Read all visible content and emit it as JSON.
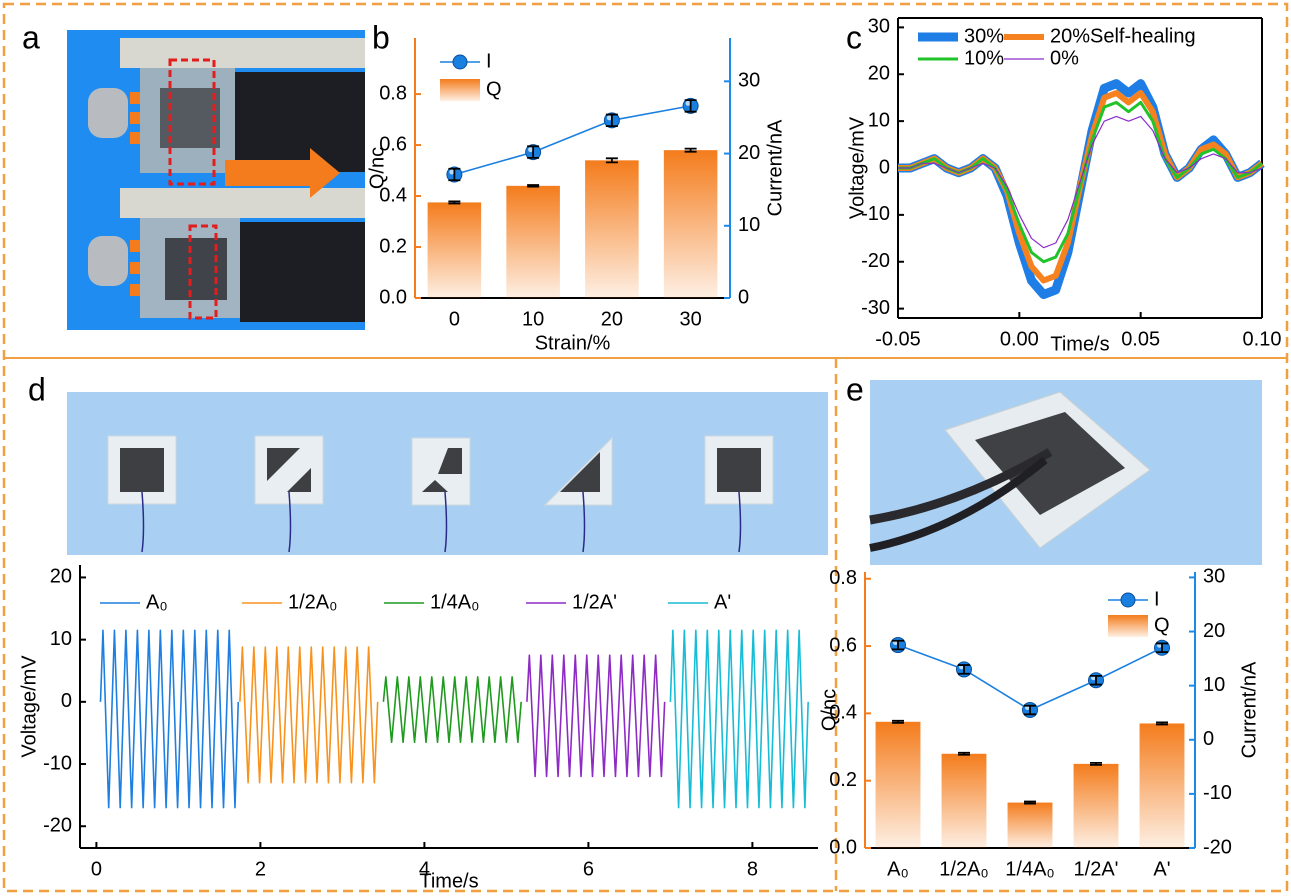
{
  "panel_labels": [
    "a",
    "b",
    "c",
    "d",
    "e"
  ],
  "chart_data": [
    {
      "type": "bar",
      "xlabel": "Strain/%",
      "ylabel": "Q/nc",
      "y2label": "Current/nA",
      "categories": [
        "0",
        "10",
        "20",
        "30"
      ],
      "series": [
        {
          "name": "I",
          "type": "line",
          "axis": "y2",
          "marker": true,
          "color": "#1a80e0",
          "values": [
            17.1,
            20.2,
            24.6,
            26.6
          ],
          "errors": [
            0.8,
            0.8,
            0.8,
            0.8
          ]
        },
        {
          "name": "Q",
          "type": "bar",
          "color": "#f47c1c",
          "values": [
            0.375,
            0.44,
            0.54,
            0.58
          ],
          "errors": [
            0.004,
            0.003,
            0.008,
            0.006
          ]
        }
      ],
      "ylim": [
        0,
        1.02
      ],
      "yticks": [
        {
          "value": 0,
          "label": "0.0"
        },
        0.2,
        0.4,
        0.6,
        0.8
      ],
      "y2lim": [
        0,
        36
      ],
      "y2ticks": [
        0,
        10,
        20,
        30
      ],
      "ycolor": "#f47c1c",
      "y2color": "#1a8ae6",
      "legend": "upper left",
      "legend_columns": 1
    },
    {
      "type": "line",
      "xlabel": "Time/s",
      "ylabel": "Voltage/mV",
      "annotation": "Self-healing",
      "x": [
        -0.05,
        -0.045,
        -0.04,
        -0.035,
        -0.03,
        -0.025,
        -0.02,
        -0.015,
        -0.01,
        -0.005,
        0,
        0.005,
        0.01,
        0.015,
        0.02,
        0.025,
        0.03,
        0.035,
        0.04,
        0.045,
        0.05,
        0.055,
        0.06,
        0.065,
        0.07,
        0.075,
        0.08,
        0.085,
        0.09,
        0.095,
        0.1
      ],
      "series": [
        {
          "name": "30%",
          "color": "#1f7de6",
          "width": 9,
          "values": [
            0,
            0,
            1,
            2,
            0,
            -1,
            0,
            2,
            0,
            -6,
            -16,
            -24,
            -27,
            -26,
            -18,
            -5,
            8,
            17,
            18,
            16,
            18,
            13,
            3,
            -2,
            0,
            4,
            6,
            3,
            -2,
            -1,
            1
          ]
        },
        {
          "name": "20%",
          "color": "#f5821e",
          "width": 6,
          "values": [
            0,
            0,
            1,
            2,
            0,
            -1,
            0,
            2,
            0,
            -5,
            -14,
            -21,
            -24,
            -23,
            -16,
            -4,
            7,
            15,
            16,
            14,
            16,
            12,
            3,
            -2,
            0,
            4,
            5,
            3,
            -2,
            -1,
            1
          ]
        },
        {
          "name": "10%",
          "color": "#22c32a",
          "width": 3,
          "values": [
            0,
            0,
            1,
            2,
            0,
            -1,
            0,
            2,
            0,
            -5,
            -12,
            -18,
            -20,
            -19,
            -14,
            -4,
            6,
            13,
            14,
            12,
            14,
            10,
            2,
            -2,
            0,
            3,
            4,
            2,
            -2,
            -1,
            1
          ]
        },
        {
          "name": "0%",
          "color": "#8b2cc8",
          "width": 1.2,
          "values": [
            0,
            0,
            1,
            1,
            0,
            -1,
            0,
            1,
            0,
            -4,
            -10,
            -15,
            -17,
            -16,
            -11,
            -3,
            5,
            10,
            11,
            10,
            11,
            8,
            2,
            -1,
            0,
            2,
            3,
            2,
            -1,
            -1,
            0
          ]
        }
      ],
      "xlim": [
        -0.05,
        0.1
      ],
      "xticks": [
        -0.05,
        {
          "value": 0,
          "label": "0.00"
        },
        0.05,
        {
          "value": 0.1,
          "label": "0.10"
        }
      ],
      "ylim": [
        -32,
        32
      ],
      "yticks": [
        -30,
        -20,
        -10,
        0,
        10,
        20,
        30
      ],
      "legend": "upper left",
      "legend_columns": 2
    },
    {
      "type": "line",
      "xlabel": "Time/s",
      "ylabel": "Voltage/mV",
      "series": [
        {
          "name": "A₀",
          "color": "#1f7fe0",
          "x": [
            0.05,
            0.08,
            0.15,
            0.22,
            0.29,
            0.36,
            0.43,
            0.5,
            0.57,
            0.64,
            0.71,
            0.78,
            0.85,
            0.92,
            0.99,
            1.06,
            1.13,
            1.2,
            1.27,
            1.34,
            1.41,
            1.48,
            1.55,
            1.62,
            1.69,
            1.73
          ],
          "values": [
            0,
            11.5,
            -17,
            11.5,
            -17,
            11.5,
            -17,
            11.5,
            -17,
            11.5,
            -17,
            11.5,
            -17,
            11.5,
            -17,
            11.5,
            -17,
            11.5,
            -17,
            11.5,
            -17,
            11.5,
            -17,
            11.5,
            -17,
            0
          ]
        },
        {
          "name": "1/2A₀",
          "color": "#f7931e",
          "x": [
            1.75,
            1.78,
            1.85,
            1.92,
            1.99,
            2.06,
            2.13,
            2.2,
            2.27,
            2.34,
            2.41,
            2.48,
            2.55,
            2.62,
            2.69,
            2.76,
            2.83,
            2.9,
            2.97,
            3.04,
            3.11,
            3.18,
            3.25,
            3.32,
            3.39,
            3.43
          ],
          "values": [
            0,
            8.8,
            -13,
            8.8,
            -13,
            8.8,
            -13,
            8.8,
            -13,
            8.8,
            -13,
            8.8,
            -13,
            8.8,
            -13,
            8.8,
            -13,
            8.8,
            -13,
            8.8,
            -13,
            8.8,
            -13,
            8.8,
            -13,
            0
          ]
        },
        {
          "name": "1/4A₀",
          "color": "#1f9a1f",
          "x": [
            3.5,
            3.53,
            3.6,
            3.67,
            3.74,
            3.81,
            3.88,
            3.95,
            4.02,
            4.09,
            4.16,
            4.23,
            4.3,
            4.37,
            4.44,
            4.51,
            4.58,
            4.65,
            4.72,
            4.79,
            4.86,
            4.93,
            5.0,
            5.07,
            5.14,
            5.18
          ],
          "values": [
            0,
            4,
            -6.5,
            4,
            -6.5,
            4,
            -6.5,
            4,
            -6.5,
            4,
            -6.5,
            4,
            -6.5,
            4,
            -6.5,
            4,
            -6.5,
            4,
            -6.5,
            4,
            -6.5,
            4,
            -6.5,
            4,
            -6.5,
            0
          ]
        },
        {
          "name": "1/2A'",
          "color": "#8e2bc4",
          "x": [
            5.25,
            5.28,
            5.35,
            5.42,
            5.49,
            5.56,
            5.63,
            5.7,
            5.77,
            5.84,
            5.91,
            5.98,
            6.05,
            6.12,
            6.19,
            6.26,
            6.33,
            6.4,
            6.47,
            6.54,
            6.61,
            6.68,
            6.75,
            6.82,
            6.89,
            6.93
          ],
          "values": [
            0,
            7.5,
            -12,
            7.5,
            -12,
            7.5,
            -12,
            7.5,
            -12,
            7.5,
            -12,
            7.5,
            -12,
            7.5,
            -12,
            7.5,
            -12,
            7.5,
            -12,
            7.5,
            -12,
            7.5,
            -12,
            7.5,
            -12,
            0
          ]
        },
        {
          "name": "A'",
          "color": "#17bcd6",
          "x": [
            7.0,
            7.03,
            7.1,
            7.17,
            7.24,
            7.31,
            7.38,
            7.45,
            7.52,
            7.59,
            7.66,
            7.73,
            7.8,
            7.87,
            7.94,
            8.01,
            8.08,
            8.15,
            8.22,
            8.29,
            8.36,
            8.43,
            8.5,
            8.57,
            8.64,
            8.68
          ],
          "values": [
            0,
            11.5,
            -17,
            11.5,
            -17,
            11.5,
            -17,
            11.5,
            -17,
            11.5,
            -17,
            11.5,
            -17,
            11.5,
            -17,
            11.5,
            -17,
            11.5,
            -17,
            11.5,
            -17,
            11.5,
            -17,
            11.5,
            -17,
            0
          ]
        }
      ],
      "xlim": [
        -0.2,
        8.8
      ],
      "xticks": [
        0,
        2,
        4,
        6,
        8
      ],
      "ylim": [
        -23.5,
        22
      ],
      "yticks": [
        -20,
        -10,
        0,
        10,
        20
      ],
      "legend": "upper left",
      "legend_columns": 5
    },
    {
      "type": "bar",
      "ylabel": "Q/nc",
      "y2label": "Current/nA",
      "categories": [
        "A₀",
        "1/2A₀",
        "1/4A₀",
        "1/2A'",
        "A'"
      ],
      "series": [
        {
          "name": "I",
          "type": "line",
          "axis": "y2",
          "marker": true,
          "color": "#1a80e0",
          "values": [
            17.5,
            13,
            5.5,
            11,
            17
          ],
          "errors": [
            0.8,
            0.8,
            0.8,
            0.8,
            0.8
          ]
        },
        {
          "name": "Q",
          "type": "bar",
          "color": "#f47c1c",
          "values": [
            0.375,
            0.28,
            0.135,
            0.25,
            0.37
          ],
          "errors": [
            0.003,
            0.003,
            0.003,
            0.003,
            0.003
          ]
        }
      ],
      "ylim": [
        0,
        0.82
      ],
      "yticks": [
        {
          "value": 0,
          "label": "0.0"
        },
        0.2,
        0.4,
        0.6,
        0.8
      ],
      "y2lim": [
        -20,
        31
      ],
      "y2ticks": [
        -20,
        -10,
        0,
        10,
        20,
        30
      ],
      "ycolor": "#f47c1c",
      "y2color": "#1a8ae6",
      "legend": "upper right",
      "legend_columns": 1
    }
  ]
}
